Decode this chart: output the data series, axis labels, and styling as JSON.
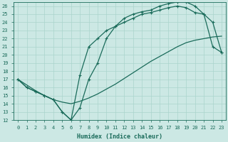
{
  "xlabel": "Humidex (Indice chaleur)",
  "bg_color": "#cce8e4",
  "grid_color": "#aad4cc",
  "line_color": "#1a6b5a",
  "xlim": [
    -0.5,
    23.5
  ],
  "ylim": [
    12,
    26.5
  ],
  "xticks": [
    0,
    1,
    2,
    3,
    4,
    5,
    6,
    7,
    8,
    9,
    10,
    11,
    12,
    13,
    14,
    15,
    16,
    17,
    18,
    19,
    20,
    21,
    22,
    23
  ],
  "yticks": [
    12,
    13,
    14,
    15,
    16,
    17,
    18,
    19,
    20,
    21,
    22,
    23,
    24,
    25,
    26
  ],
  "curve1_x": [
    0,
    1,
    2,
    3,
    4,
    5,
    6,
    7,
    8,
    9,
    10,
    11,
    12,
    13,
    14,
    15,
    16,
    17,
    18,
    19,
    20,
    21,
    22,
    23
  ],
  "curve1_y": [
    17,
    16,
    15.5,
    15,
    14.5,
    13,
    12,
    13.5,
    17,
    19,
    22,
    23.5,
    24.5,
    25,
    25.3,
    25.5,
    26,
    26.3,
    26.5,
    26.5,
    26,
    25,
    24,
    20.3
  ],
  "curve2_x": [
    0,
    1,
    2,
    3,
    4,
    5,
    6,
    7,
    8,
    9,
    10,
    11,
    12,
    13,
    14,
    15,
    16,
    17,
    18,
    19,
    20,
    21,
    22,
    23
  ],
  "curve2_y": [
    17,
    16,
    15.5,
    15,
    14.5,
    13,
    12,
    17.5,
    21,
    22,
    23,
    23.5,
    24,
    24.5,
    25,
    25.2,
    25.5,
    25.8,
    26.0,
    25.8,
    25.2,
    25,
    21,
    20.3
  ],
  "curve3_x": [
    0,
    1,
    2,
    3,
    4,
    5,
    6,
    7,
    8,
    9,
    10,
    11,
    12,
    13,
    14,
    15,
    16,
    17,
    18,
    19,
    20,
    21,
    22,
    23
  ],
  "curve3_y": [
    17,
    16.3,
    15.6,
    15.0,
    14.5,
    14.2,
    14.0,
    14.3,
    14.7,
    15.2,
    15.8,
    16.4,
    17.1,
    17.8,
    18.5,
    19.2,
    19.8,
    20.4,
    21.0,
    21.5,
    21.8,
    22.0,
    22.2,
    22.3
  ]
}
